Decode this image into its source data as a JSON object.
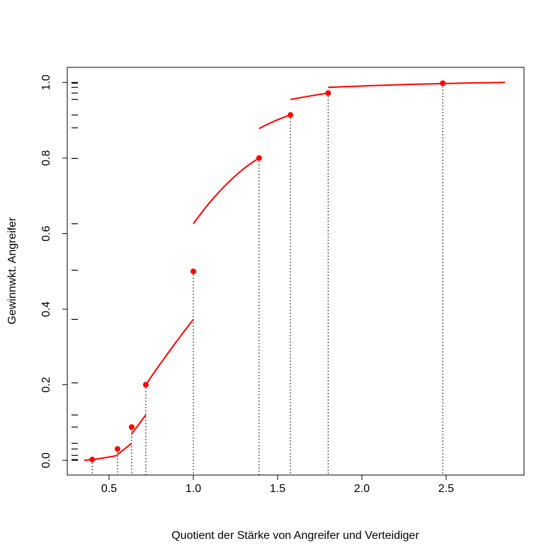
{
  "chart_data": {
    "type": "scatter",
    "title": "",
    "xlabel": "Quotient der Stärke von Angreifer und Verteidiger",
    "ylabel": "Gewinnwkt. Angreifer",
    "xlim": [
      0.252,
      2.962
    ],
    "ylim": [
      -0.039,
      1.04
    ],
    "x_ticks": [
      0.5,
      1.0,
      1.5,
      2.0,
      2.5
    ],
    "x_tick_labels": [
      "0.5",
      "1.0",
      "1.5",
      "2.0",
      "2.5"
    ],
    "y_ticks": [
      0.0,
      0.2,
      0.4,
      0.6,
      0.8,
      1.0
    ],
    "y_tick_labels": [
      "0.0",
      "0.2",
      "0.4",
      "0.6",
      "0.8",
      "1.0"
    ],
    "grid": false,
    "colors": {
      "points": "#ff0000",
      "curves": "#ff0000",
      "droplines": "#000000",
      "rug": "#000000"
    },
    "points": [
      {
        "x": 0.4,
        "y": 0.002
      },
      {
        "x": 0.55,
        "y": 0.03
      },
      {
        "x": 0.634,
        "y": 0.088
      },
      {
        "x": 0.718,
        "y": 0.2
      },
      {
        "x": 1.0,
        "y": 0.5
      },
      {
        "x": 1.39,
        "y": 0.8
      },
      {
        "x": 1.576,
        "y": 0.914
      },
      {
        "x": 1.8,
        "y": 0.972
      },
      {
        "x": 2.48,
        "y": 0.998
      }
    ],
    "curve_segments": [
      {
        "x": [
          0.353,
          0.45,
          0.55
        ],
        "y": [
          0.0,
          0.005,
          0.013
        ]
      },
      {
        "x": [
          0.55,
          0.592,
          0.634
        ],
        "y": [
          0.015,
          0.03,
          0.045
        ]
      },
      {
        "x": [
          0.634,
          0.676,
          0.718
        ],
        "y": [
          0.07,
          0.095,
          0.12
        ]
      },
      {
        "x": [
          0.718,
          0.86,
          1.0
        ],
        "y": [
          0.2,
          0.29,
          0.373
        ]
      },
      {
        "x": [
          1.0,
          1.195,
          1.39
        ],
        "y": [
          0.626,
          0.73,
          0.8
        ]
      },
      {
        "x": [
          1.39,
          1.483,
          1.576
        ],
        "y": [
          0.878,
          0.898,
          0.914
        ]
      },
      {
        "x": [
          1.576,
          1.69,
          1.8
        ],
        "y": [
          0.955,
          0.964,
          0.972
        ]
      },
      {
        "x": [
          1.8,
          2.3,
          2.85
        ],
        "y": [
          0.987,
          0.995,
          1.0
        ]
      }
    ],
    "rug_y": [
      1.0,
      0.987,
      0.972,
      0.955,
      0.914,
      0.88,
      0.799,
      0.626,
      0.503,
      0.373,
      0.205,
      0.12,
      0.088,
      0.045,
      0.03,
      0.013,
      0.002,
      0.0,
      0.998
    ]
  }
}
